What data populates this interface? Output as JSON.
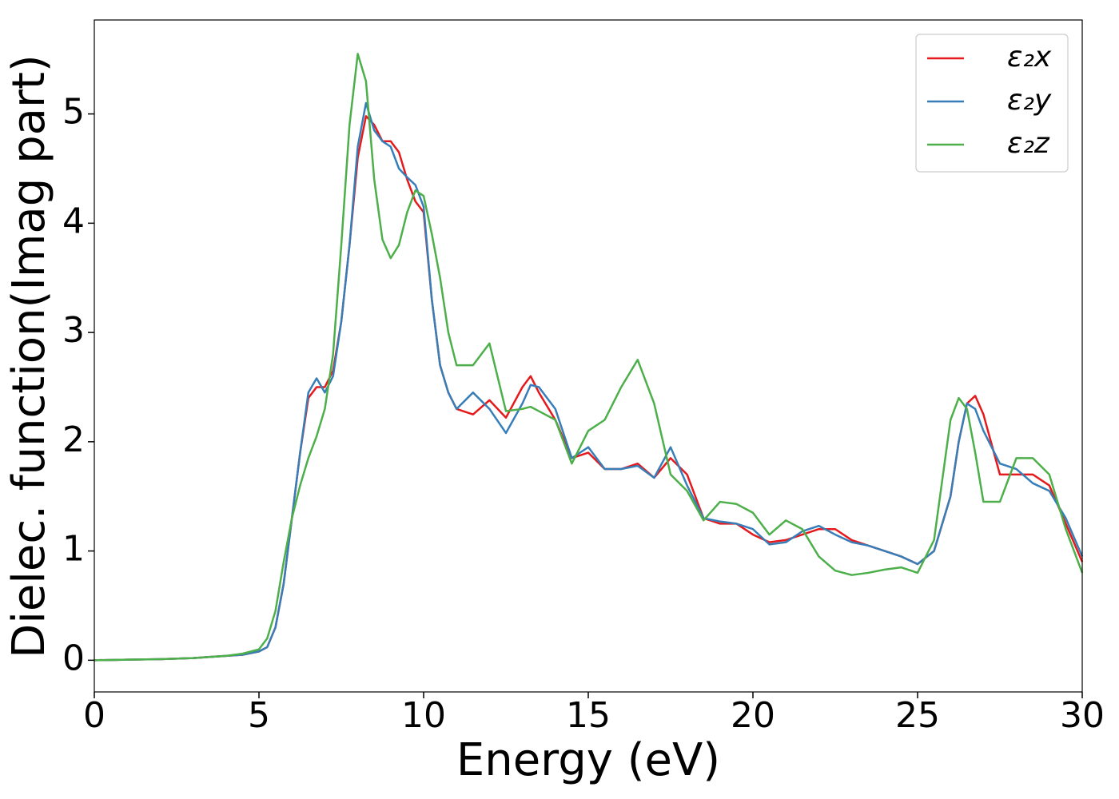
{
  "chart_data": {
    "type": "line",
    "xlabel": "Energy (eV)",
    "ylabel": "Dielec. function(Imag part)",
    "x": [
      0,
      1,
      2,
      3,
      4,
      4.5,
      5,
      5.25,
      5.5,
      5.75,
      6,
      6.25,
      6.5,
      6.75,
      7,
      7.25,
      7.5,
      7.75,
      8,
      8.25,
      8.5,
      8.75,
      9,
      9.25,
      9.5,
      9.75,
      10,
      10.25,
      10.5,
      10.75,
      11,
      11.5,
      12,
      12.5,
      13,
      13.25,
      13.5,
      14,
      14.5,
      15,
      15.5,
      16,
      16.5,
      17,
      17.5,
      18,
      18.5,
      19,
      19.5,
      20,
      20.5,
      21,
      21.5,
      22,
      22.5,
      23,
      23.5,
      24,
      24.5,
      25,
      25.5,
      26,
      26.25,
      26.5,
      26.75,
      27,
      27.5,
      28,
      28.5,
      29,
      29.5,
      30
    ],
    "series": [
      {
        "name": "ε₂x",
        "color": "#e41a1c",
        "values": [
          0,
          0.005,
          0.01,
          0.02,
          0.04,
          0.05,
          0.08,
          0.12,
          0.3,
          0.7,
          1.3,
          1.9,
          2.4,
          2.5,
          2.5,
          2.65,
          3.1,
          3.8,
          4.6,
          4.98,
          4.9,
          4.75,
          4.75,
          4.65,
          4.4,
          4.2,
          4.1,
          3.3,
          2.7,
          2.45,
          2.3,
          2.25,
          2.38,
          2.22,
          2.5,
          2.6,
          2.45,
          2.2,
          1.85,
          1.9,
          1.75,
          1.75,
          1.8,
          1.67,
          1.85,
          1.7,
          1.3,
          1.25,
          1.25,
          1.15,
          1.08,
          1.1,
          1.15,
          1.2,
          1.2,
          1.1,
          1.05,
          1.0,
          0.95,
          0.88,
          1.0,
          1.5,
          2.0,
          2.35,
          2.42,
          2.25,
          1.7,
          1.7,
          1.7,
          1.6,
          1.25,
          0.9
        ]
      },
      {
        "name": "ε₂y",
        "color": "#377eb8",
        "values": [
          0,
          0.005,
          0.01,
          0.02,
          0.04,
          0.05,
          0.08,
          0.12,
          0.3,
          0.7,
          1.3,
          1.9,
          2.45,
          2.58,
          2.45,
          2.6,
          3.1,
          3.8,
          4.7,
          5.1,
          4.85,
          4.75,
          4.7,
          4.5,
          4.42,
          4.35,
          4.15,
          3.3,
          2.7,
          2.45,
          2.3,
          2.45,
          2.3,
          2.08,
          2.35,
          2.52,
          2.5,
          2.3,
          1.85,
          1.95,
          1.75,
          1.75,
          1.78,
          1.67,
          1.95,
          1.6,
          1.3,
          1.27,
          1.25,
          1.2,
          1.06,
          1.08,
          1.18,
          1.23,
          1.15,
          1.08,
          1.05,
          1.0,
          0.95,
          0.88,
          1.0,
          1.5,
          2.0,
          2.35,
          2.3,
          2.1,
          1.8,
          1.75,
          1.62,
          1.55,
          1.3,
          0.95
        ]
      },
      {
        "name": "ε₂z",
        "color": "#4daf4a",
        "values": [
          0,
          0.005,
          0.01,
          0.02,
          0.04,
          0.06,
          0.1,
          0.2,
          0.45,
          0.9,
          1.3,
          1.6,
          1.85,
          2.05,
          2.3,
          2.8,
          3.8,
          4.9,
          5.55,
          5.3,
          4.4,
          3.85,
          3.68,
          3.8,
          4.1,
          4.3,
          4.25,
          3.9,
          3.5,
          3.0,
          2.7,
          2.7,
          2.9,
          2.28,
          2.3,
          2.32,
          2.28,
          2.2,
          1.8,
          2.1,
          2.2,
          2.5,
          2.75,
          2.35,
          1.7,
          1.55,
          1.28,
          1.45,
          1.43,
          1.35,
          1.15,
          1.28,
          1.2,
          0.95,
          0.82,
          0.78,
          0.8,
          0.83,
          0.85,
          0.8,
          1.1,
          2.2,
          2.4,
          2.3,
          1.9,
          1.45,
          1.45,
          1.85,
          1.85,
          1.7,
          1.2,
          0.8
        ]
      }
    ],
    "xlim": [
      0,
      30
    ],
    "xticks": [
      0,
      5,
      10,
      15,
      20,
      25,
      30
    ],
    "ylim": [
      -0.29,
      5.86
    ],
    "yticks": [
      0,
      1,
      2,
      3,
      4,
      5
    ],
    "legend": "upper right"
  }
}
